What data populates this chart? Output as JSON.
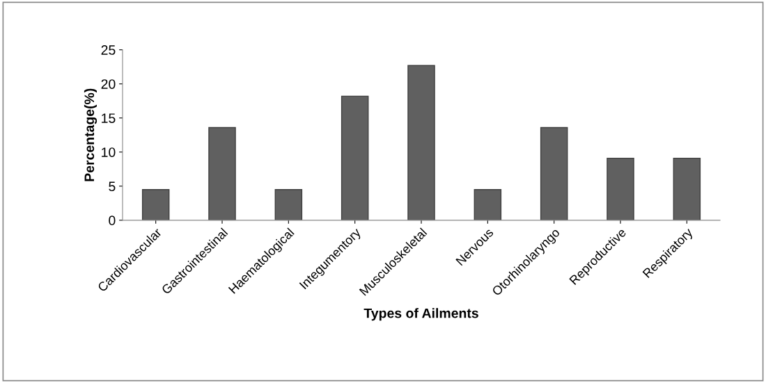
{
  "chart_data": {
    "type": "bar",
    "xlabel": "Types of Ailments",
    "ylabel": "Percentage(%)",
    "categories": [
      "Cardiovascular",
      "Gastrointestinal",
      "Haematological",
      "Integumentory",
      "Musculoskeletal",
      "Nervous",
      "Otorhinolaryngo",
      "Reproductive",
      "Respiratory"
    ],
    "values": [
      4.5,
      13.6,
      4.5,
      18.2,
      22.7,
      4.5,
      13.6,
      9.1,
      9.1
    ],
    "color": "#606060",
    "ylim": [
      0,
      25
    ],
    "yticks": [
      0,
      5,
      10,
      15,
      20,
      25
    ],
    "grid": false,
    "legend": false
  }
}
